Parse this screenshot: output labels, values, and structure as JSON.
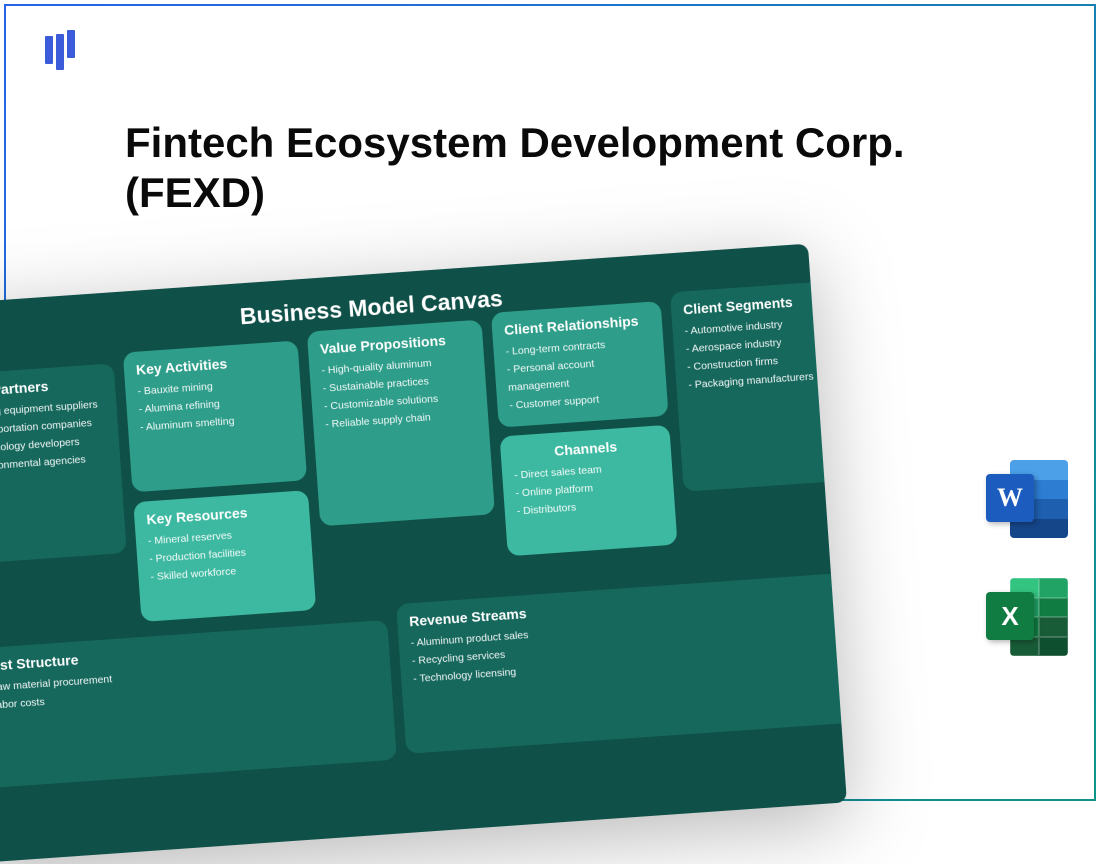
{
  "page_title": "Fintech Ecosystem Development Corp. (FEXD)",
  "frame_gradient": [
    "#2563eb",
    "#0d9488"
  ],
  "logo_color": "#3b5bdb",
  "canvas": {
    "type": "infographic",
    "title": "Business Model Canvas",
    "background_color": "#0f5048",
    "cell_colors": {
      "dark": "#16685d",
      "medium": "#2e9d8a",
      "light": "#3eb9a1"
    },
    "text_color": "#ffffff",
    "title_fontsize": 23,
    "cell_title_fontsize": 14,
    "item_fontsize": 10.5,
    "rotation_deg": -4,
    "cells": {
      "key_partners": {
        "title": "Key Partners",
        "tone": "dark",
        "items": [
          "Mining equipment suppliers",
          "Transportation companies",
          "Technology developers",
          "Environmental agencies"
        ]
      },
      "key_activities": {
        "title": "Key Activities",
        "tone": "medium",
        "items": [
          "Bauxite mining",
          "Alumina refining",
          "Aluminum smelting"
        ]
      },
      "key_resources": {
        "title": "Key Resources",
        "tone": "light",
        "items": [
          "Mineral reserves",
          "Production facilities",
          "Skilled workforce"
        ]
      },
      "value_propositions": {
        "title": "Value Propositions",
        "tone": "medium",
        "items": [
          "High-quality aluminum",
          "Sustainable practices",
          "Customizable solutions",
          "Reliable supply chain"
        ]
      },
      "client_relationships": {
        "title": "Client Relationships",
        "tone": "medium",
        "items": [
          "Long-term contracts",
          "Personal account management",
          "Customer support"
        ]
      },
      "channels": {
        "title": "Channels",
        "tone": "light",
        "items": [
          "Direct sales team",
          "Online platform",
          "Distributors"
        ]
      },
      "client_segments": {
        "title": "Client Segments",
        "tone": "dark",
        "items": [
          "Automotive industry",
          "Aerospace industry",
          "Construction firms",
          "Packaging manufacturers"
        ]
      },
      "cost_structure": {
        "title": "Cost Structure",
        "tone": "dark",
        "items": [
          "Raw material procurement",
          "Labor costs"
        ]
      },
      "revenue_streams": {
        "title": "Revenue Streams",
        "tone": "dark",
        "items": [
          "Aluminum product sales",
          "Recycling services",
          "Technology licensing"
        ]
      }
    }
  },
  "app_icons": {
    "word": {
      "letter": "W",
      "front_color": "#1b5cbe",
      "stripes": [
        "#4ba0e8",
        "#2d7dd2",
        "#1f5fb0",
        "#16468a"
      ]
    },
    "excel": {
      "letter": "X",
      "front_color": "#107c41",
      "cells": [
        "#33c481",
        "#21a366",
        "#21a366",
        "#107c41",
        "#107c41",
        "#185c37",
        "#185c37",
        "#0e4f30"
      ]
    }
  }
}
